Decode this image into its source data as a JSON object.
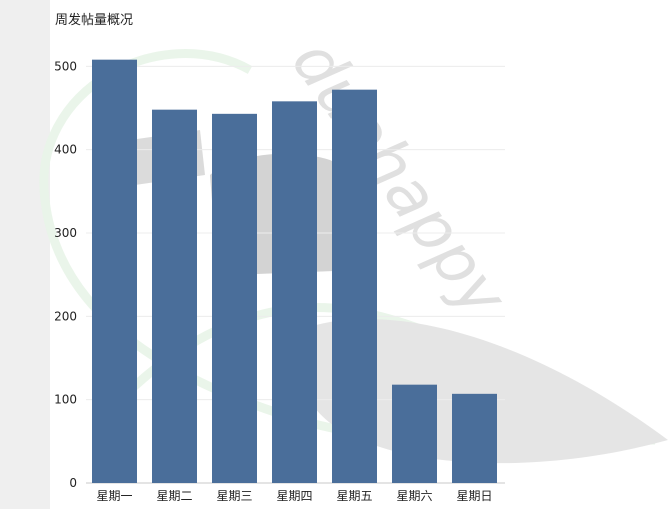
{
  "watermark": {
    "text": "duohappy"
  },
  "chart_data": {
    "type": "bar",
    "title": "周发帖量概况",
    "xlabel": "",
    "ylabel": "",
    "categories": [
      "星期一",
      "星期二",
      "星期三",
      "星期四",
      "星期五",
      "星期六",
      "星期日"
    ],
    "values": [
      508,
      448,
      443,
      458,
      472,
      118,
      107
    ],
    "ylim": [
      0,
      510
    ],
    "yticks": [
      0,
      100,
      200,
      300,
      400,
      500
    ],
    "grid": true,
    "bar_color": "#4a6e9a"
  }
}
